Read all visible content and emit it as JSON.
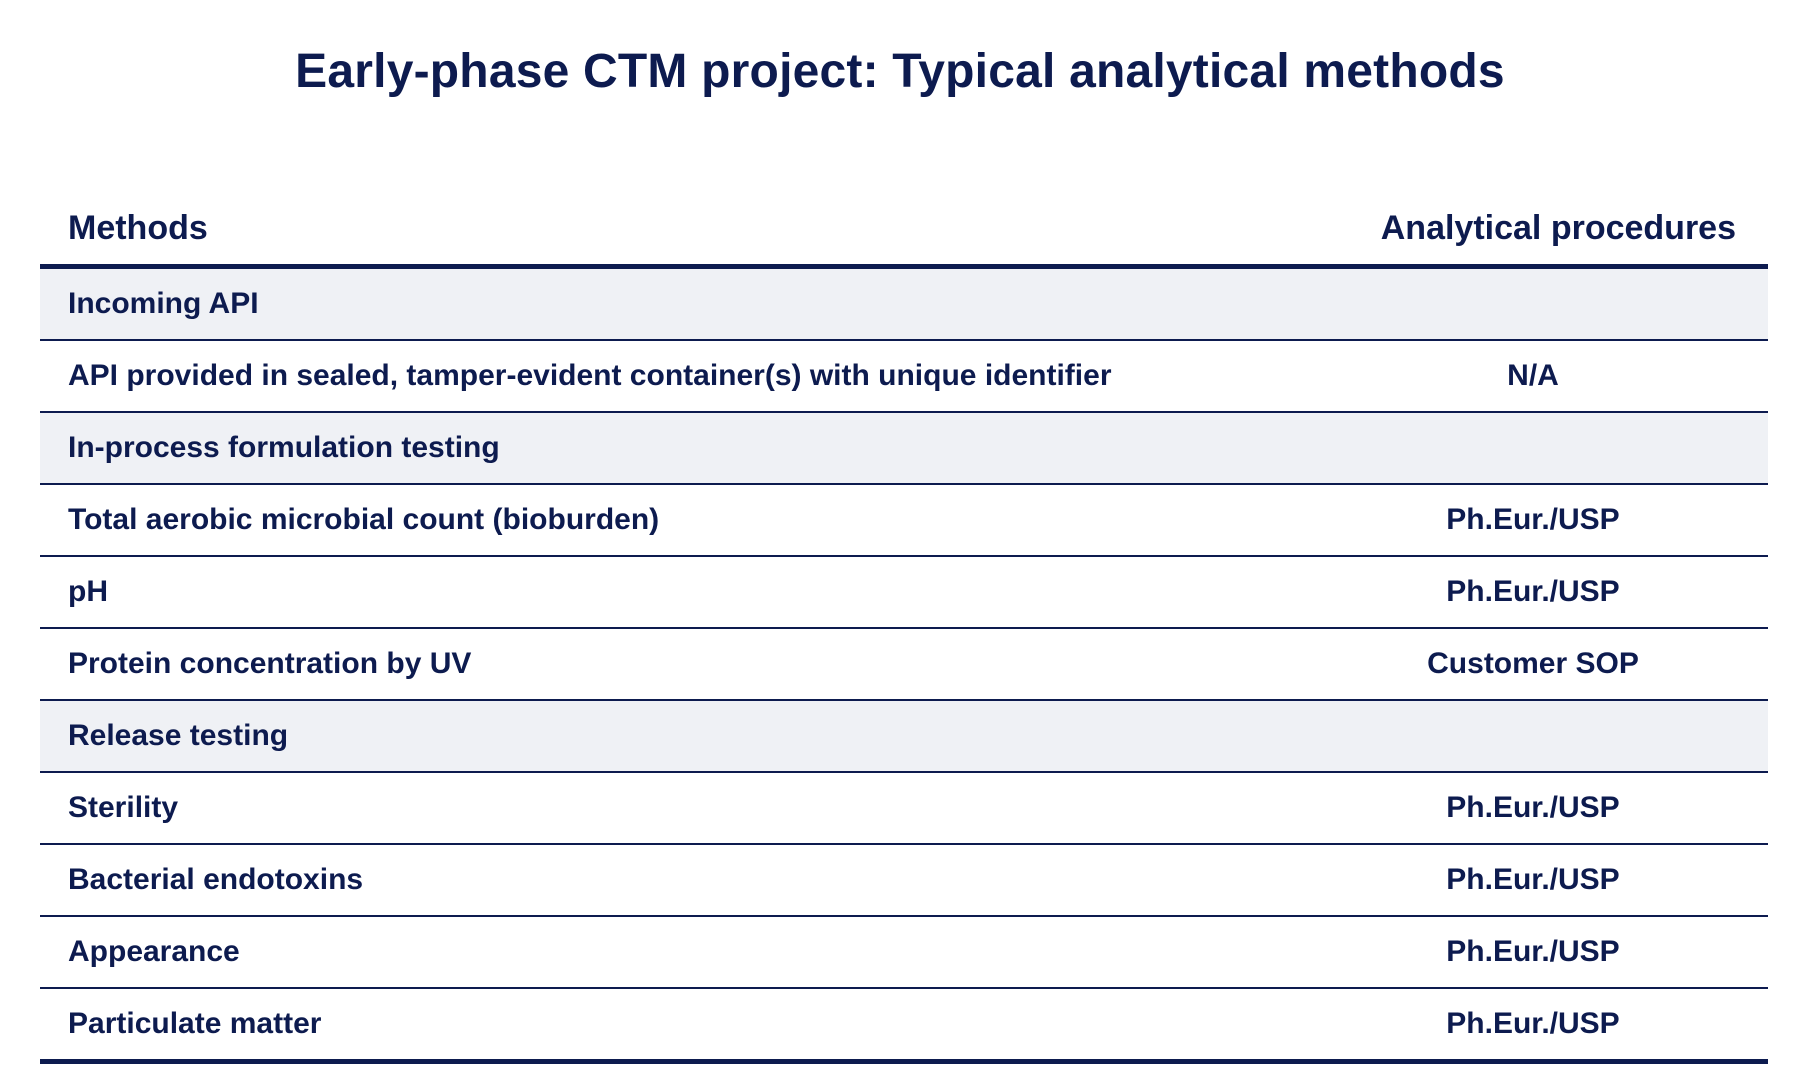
{
  "title": "Early-phase CTM project: Typical analytical methods",
  "table": {
    "headers": {
      "methods": "Methods",
      "procedures": "Analytical procedures"
    },
    "rows": [
      {
        "type": "section",
        "method": "Incoming API",
        "procedure": ""
      },
      {
        "type": "item",
        "method": "API provided in sealed, tamper-evident container(s) with unique identifier",
        "procedure": "N/A"
      },
      {
        "type": "section",
        "method": "In-process formulation testing",
        "procedure": ""
      },
      {
        "type": "item",
        "method": "Total aerobic microbial count (bioburden)",
        "procedure": "Ph.Eur./USP"
      },
      {
        "type": "item",
        "method": "pH",
        "procedure": "Ph.Eur./USP"
      },
      {
        "type": "item",
        "method": "Protein concentration by UV",
        "procedure": "Customer SOP"
      },
      {
        "type": "section",
        "method": "Release testing",
        "procedure": ""
      },
      {
        "type": "item",
        "method": "Sterility",
        "procedure": "Ph.Eur./USP"
      },
      {
        "type": "item",
        "method": "Bacterial endotoxins",
        "procedure": "Ph.Eur./USP"
      },
      {
        "type": "item",
        "method": "Appearance",
        "procedure": "Ph.Eur./USP"
      },
      {
        "type": "item",
        "method": "Particulate matter",
        "procedure": "Ph.Eur./USP"
      }
    ]
  }
}
